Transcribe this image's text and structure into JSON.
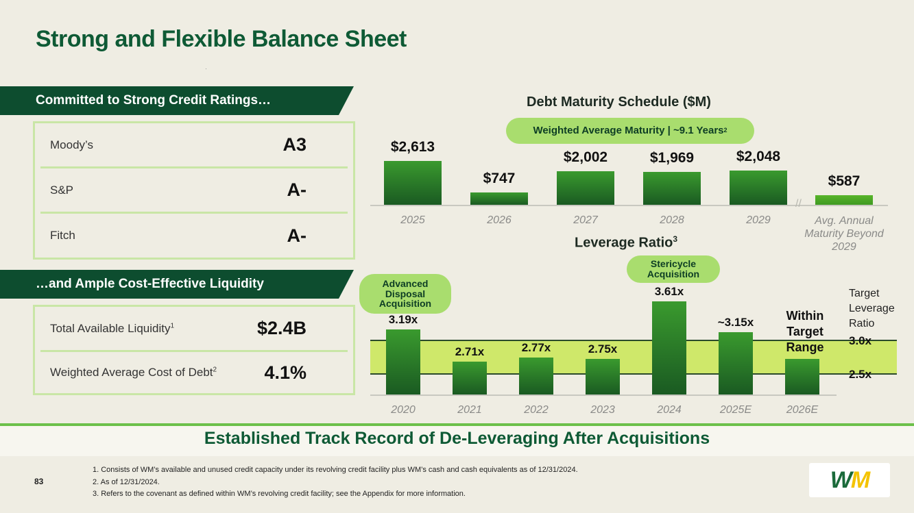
{
  "title": "Strong and Flexible Balance Sheet",
  "ratings": {
    "banner": "Committed to Strong Credit Ratings…",
    "rows": [
      {
        "label": "Moody’s",
        "value": "A3"
      },
      {
        "label": "S&P",
        "value": "A-"
      },
      {
        "label": "Fitch",
        "value": "A-"
      }
    ]
  },
  "liquidity": {
    "banner": "…and Ample Cost-Effective Liquidity",
    "rows": [
      {
        "label": "Total Available Liquidity",
        "sup": "1",
        "value": "$2.4B"
      },
      {
        "label": "Weighted Average Cost of Debt",
        "sup": "2",
        "value": "4.1%"
      }
    ]
  },
  "debt_chart": {
    "title": "Debt Maturity Schedule ($M)",
    "pill": "Weighted Average Maturity | ~9.1 Years",
    "pill_sup": "2",
    "break_mark": "//"
  },
  "leverage_chart": {
    "title": "Leverage Ratio",
    "title_sup": "3",
    "pill_1": "Advanced Disposal Acquisition",
    "pill_2": "Stericycle Acquisition",
    "within_label": "Within Target Range",
    "target_label": "Target Leverage Ratio",
    "target_high": "3.0x",
    "target_low": "2.5x"
  },
  "chart_data": [
    {
      "type": "bar",
      "title": "Debt Maturity Schedule ($M)",
      "categories": [
        "2025",
        "2026",
        "2027",
        "2028",
        "2029",
        "Avg. Annual Maturity Beyond 2029"
      ],
      "values": [
        2613,
        747,
        2002,
        1969,
        2048,
        587
      ],
      "value_labels": [
        "$2,613",
        "$747",
        "$2,002",
        "$1,969",
        "$2,048",
        "$587"
      ]
    },
    {
      "type": "bar",
      "title": "Leverage Ratio",
      "categories": [
        "2020",
        "2021",
        "2022",
        "2023",
        "2024",
        "2025E",
        "2026E"
      ],
      "values": [
        3.19,
        2.71,
        2.77,
        2.75,
        3.61,
        3.15,
        2.75
      ],
      "value_labels": [
        "3.19x",
        "2.71x",
        "2.77x",
        "2.75x",
        "3.61x",
        "~3.15x",
        ""
      ],
      "target_range": [
        2.5,
        3.0
      ]
    }
  ],
  "bottom_banner": "Established Track Record of De-Leveraging After Acquisitions",
  "footnotes": [
    "1. Consists of WM’s available and unused credit capacity under its revolving credit facility plus WM’s cash and cash equivalents as of 12/31/2024.",
    "2. As of 12/31/2024.",
    "3. Refers to the covenant as defined within WM’s revolving credit facility; see the Appendix for more information."
  ],
  "page_number": "83",
  "logo": {
    "w": "W",
    "m": "M"
  },
  "colors": {
    "brand_green": "#0e5a35",
    "accent_green": "#a9dd6e",
    "logo_yellow": "#f4c300"
  }
}
